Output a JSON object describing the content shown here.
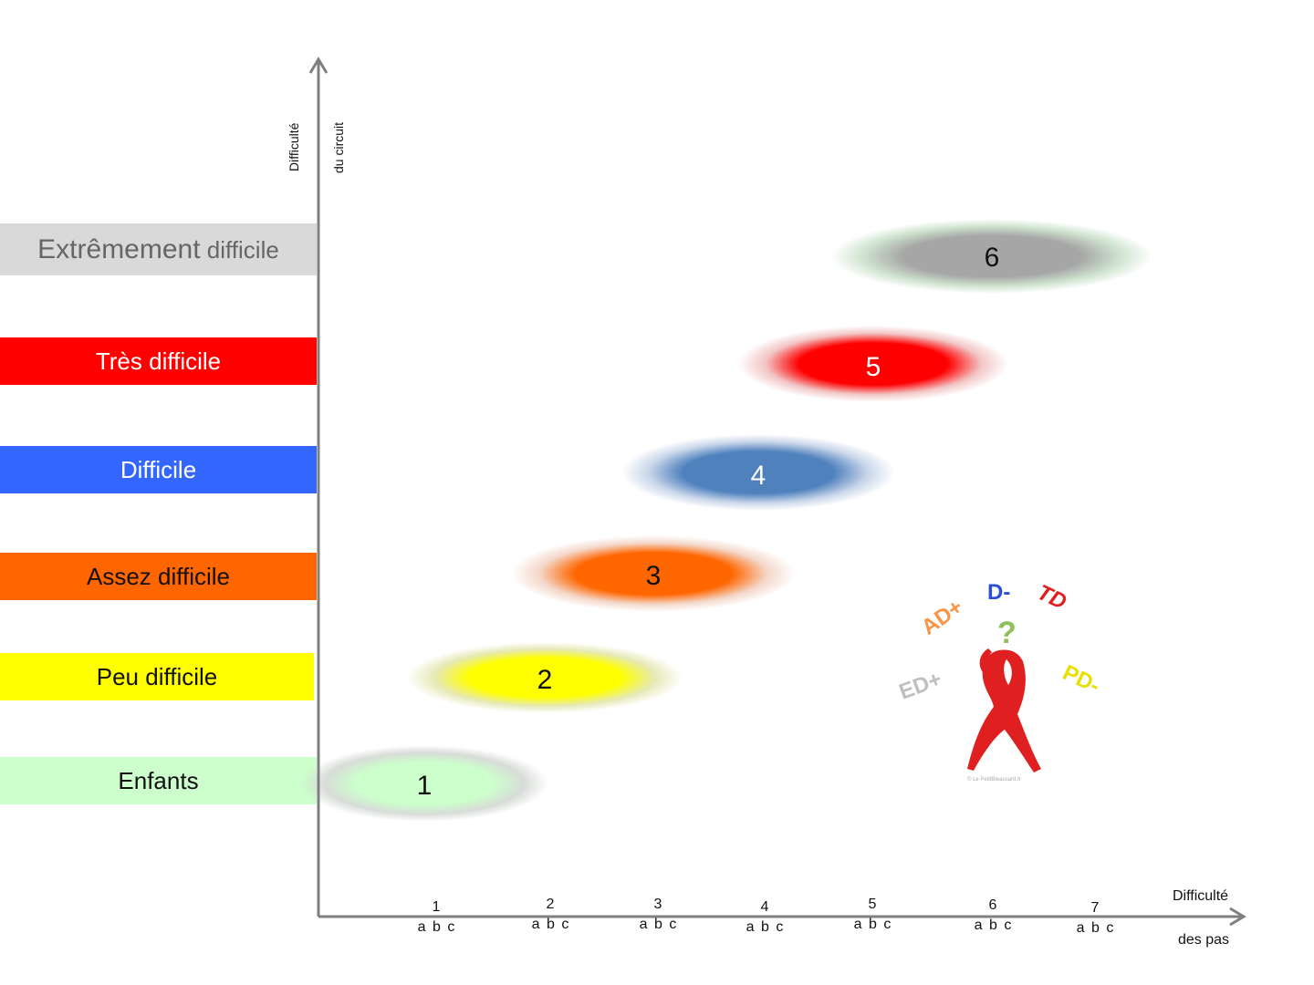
{
  "y_axis": {
    "label_line1": "Difficulté",
    "label_line2": "du circuit"
  },
  "x_axis": {
    "label_line1": "Difficulté",
    "label_line2": "des pas",
    "ticks": [
      {
        "n": "1",
        "sub": "a b c"
      },
      {
        "n": "2",
        "sub": "a b c"
      },
      {
        "n": "3",
        "sub": "a b c"
      },
      {
        "n": "4",
        "sub": "a b c"
      },
      {
        "n": "5",
        "sub": "a b c"
      },
      {
        "n": "6",
        "sub": "a b c"
      },
      {
        "n": "7",
        "sub": "a b c"
      }
    ]
  },
  "levels": [
    {
      "label_main": "Extrêmement",
      "label_rest": "difficile",
      "bg": "#d9d9d9",
      "text_color": "#666666",
      "blob_color": "#a6a6a6",
      "halo_color": "#cfe3cf",
      "number": "6"
    },
    {
      "label_main": "Très difficile",
      "label_rest": "",
      "bg": "#ff0000",
      "text_color": "#ffffff",
      "blob_color": "#ff0000",
      "halo_color": "#f2c6c6",
      "number": "5"
    },
    {
      "label_main": "Difficile",
      "label_rest": "",
      "bg": "#3366ff",
      "text_color": "#ffffff",
      "blob_color": "#4f81bd",
      "halo_color": "#c9d6ea",
      "number": "4"
    },
    {
      "label_main": "Assez difficile",
      "label_rest": "",
      "bg": "#ff6600",
      "text_color": "#111111",
      "blob_color": "#ff6600",
      "halo_color": "#f4d7c9",
      "number": "3"
    },
    {
      "label_main": "Peu difficile",
      "label_rest": "",
      "bg": "#ffff00",
      "text_color": "#111111",
      "blob_color": "#ffff00",
      "halo_color": "#e6e9b5",
      "number": "2"
    },
    {
      "label_main": "Enfants",
      "label_rest": "",
      "bg": "#ccffcc",
      "text_color": "#111111",
      "blob_color": "#ccffcc",
      "halo_color": "#d8dcd8",
      "number": "1"
    }
  ],
  "logo": {
    "grades": [
      {
        "text": "AD+",
        "color": "#f79646"
      },
      {
        "text": "D-",
        "color": "#2a4fd6"
      },
      {
        "text": "TD",
        "color": "#e02020"
      },
      {
        "text": "ED+",
        "color": "#bfbfbf"
      },
      {
        "text": "PD-",
        "color": "#e8e000"
      }
    ],
    "question": "?",
    "question_color": "#8fbf5a",
    "figure_color": "#e02020",
    "credit": "© Le PetitBleausard.fr"
  }
}
